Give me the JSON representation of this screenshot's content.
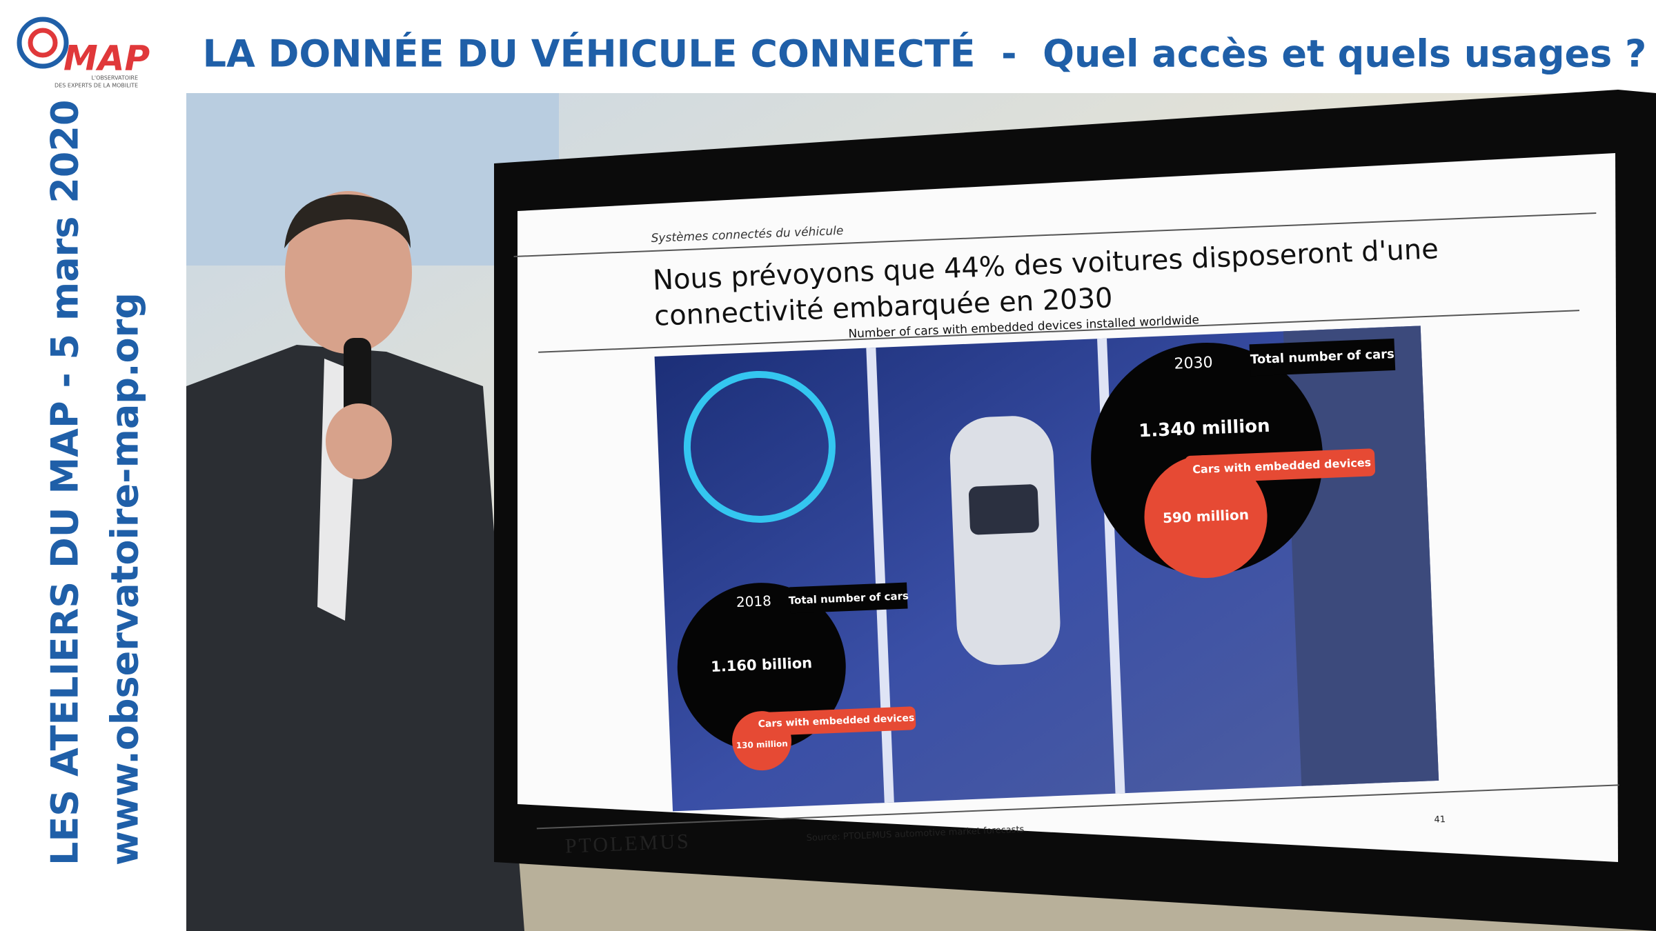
{
  "logo": {
    "name": "MAP",
    "tagline_1": "L'OBSERVATOIRE",
    "tagline_2": "DES EXPERTS DE LA MOBILITE"
  },
  "header": {
    "title": "LA DONNÉE DU VÉHICULE CONNECTÉ  -  Quel accès et quels usages ?"
  },
  "sidebar": {
    "event": "LES ATELIERS DU MAP - 5 mars 2020",
    "website": "www.observatoire-map.org"
  },
  "slide": {
    "section": "Systèmes connectés du véhicule",
    "headline_1": "Nous prévoyons que 44% des voitures disposeront d'une",
    "headline_2": "connectivité embarquée en 2030",
    "subtitle": "Number of cars with embedded devices installed worldwide",
    "bubble_2030": {
      "year": "2030",
      "total_label": "Total number of cars",
      "total": "1.340 million",
      "embedded_label": "Cars with embedded devices",
      "embedded": "590 million"
    },
    "bubble_2018": {
      "year": "2018",
      "total_label": "Total number of cars",
      "total": "1.160 billion",
      "embedded_label": "Cars with embedded devices",
      "embedded": "130 million"
    },
    "brand": "PTOLEMUS",
    "source": "Source: PTOLEMUS automotive market forecasts",
    "page": "41"
  }
}
